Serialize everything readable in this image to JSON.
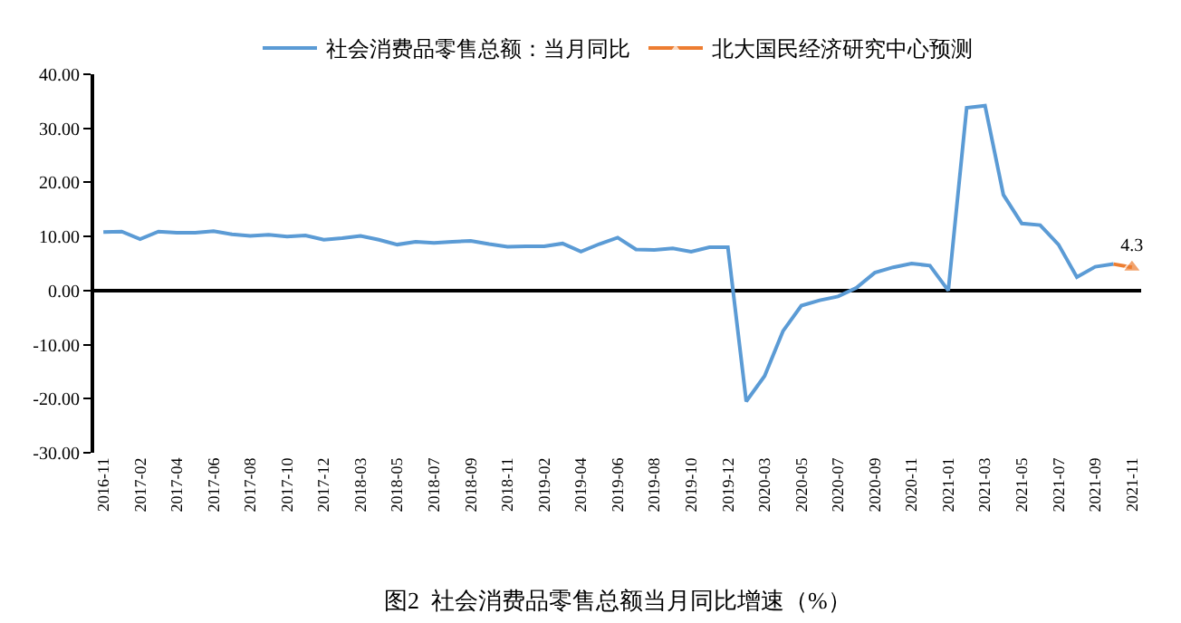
{
  "chart_data": {
    "type": "line",
    "annotations": [
      "图2  社会消费品零售总额当月同比增速（%）"
    ],
    "categories": [
      "2016-11",
      null,
      "2017-02",
      null,
      "2017-04",
      null,
      "2017-06",
      null,
      "2017-08",
      null,
      "2017-10",
      null,
      "2017-12",
      null,
      "2018-03",
      null,
      "2018-05",
      null,
      "2018-07",
      null,
      "2018-09",
      null,
      "2018-11",
      null,
      "2019-02",
      null,
      "2019-04",
      null,
      "2019-06",
      null,
      "2019-08",
      null,
      "2019-10",
      null,
      "2019-12",
      null,
      "2020-03",
      null,
      "2020-05",
      null,
      "2020-07",
      null,
      "2020-09",
      null,
      "2020-11",
      null,
      "2021-01",
      null,
      "2021-03",
      null,
      "2021-05",
      null,
      "2021-07",
      null,
      "2021-09",
      null,
      "2021-11"
    ],
    "series": [
      {
        "name": "社会消费品零售总额：当月同比",
        "color": "#5b9bd5",
        "marker": "none",
        "values": [
          10.8,
          10.9,
          9.5,
          10.9,
          10.7,
          10.7,
          11.0,
          10.4,
          10.1,
          10.3,
          10.0,
          10.2,
          9.4,
          9.7,
          10.1,
          9.4,
          8.5,
          9.0,
          8.8,
          9.0,
          9.2,
          8.6,
          8.1,
          8.2,
          8.2,
          8.7,
          7.2,
          8.6,
          9.8,
          7.6,
          7.5,
          7.8,
          7.2,
          8.0,
          8.0,
          -20.5,
          -15.8,
          -7.5,
          -2.8,
          -1.8,
          -1.1,
          0.5,
          3.3,
          4.3,
          5.0,
          4.6,
          0.0,
          33.8,
          34.2,
          17.7,
          12.4,
          12.1,
          8.5,
          2.5,
          4.4,
          4.9,
          null
        ]
      },
      {
        "name": "北大国民经济研究中心预测",
        "color": "#ed7d31",
        "marker": "triangle",
        "values": [
          null,
          null,
          null,
          null,
          null,
          null,
          null,
          null,
          null,
          null,
          null,
          null,
          null,
          null,
          null,
          null,
          null,
          null,
          null,
          null,
          null,
          null,
          null,
          null,
          null,
          null,
          null,
          null,
          null,
          null,
          null,
          null,
          null,
          null,
          null,
          null,
          null,
          null,
          null,
          null,
          null,
          null,
          null,
          null,
          null,
          null,
          null,
          null,
          null,
          null,
          null,
          null,
          null,
          null,
          null,
          4.9,
          4.3
        ],
        "value_labels": [
          null,
          null,
          null,
          null,
          null,
          null,
          null,
          null,
          null,
          null,
          null,
          null,
          null,
          null,
          null,
          null,
          null,
          null,
          null,
          null,
          null,
          null,
          null,
          null,
          null,
          null,
          null,
          null,
          null,
          null,
          null,
          null,
          null,
          null,
          null,
          null,
          null,
          null,
          null,
          null,
          null,
          null,
          null,
          null,
          null,
          null,
          null,
          null,
          null,
          null,
          null,
          null,
          null,
          null,
          null,
          null,
          "4.3"
        ]
      }
    ],
    "ylim": [
      -30,
      40
    ],
    "yticks": [
      {
        "value": -30,
        "label": "-30.00"
      },
      {
        "value": -20,
        "label": "-20.00"
      },
      {
        "value": -10,
        "label": "-10.00"
      },
      {
        "value": 0,
        "label": "0.00"
      },
      {
        "value": 10,
        "label": "10.00"
      },
      {
        "value": 20,
        "label": "20.00"
      },
      {
        "value": 30,
        "label": "30.00"
      },
      {
        "value": 40,
        "label": "40.00"
      }
    ],
    "legend": "top",
    "line_style": "solid"
  }
}
